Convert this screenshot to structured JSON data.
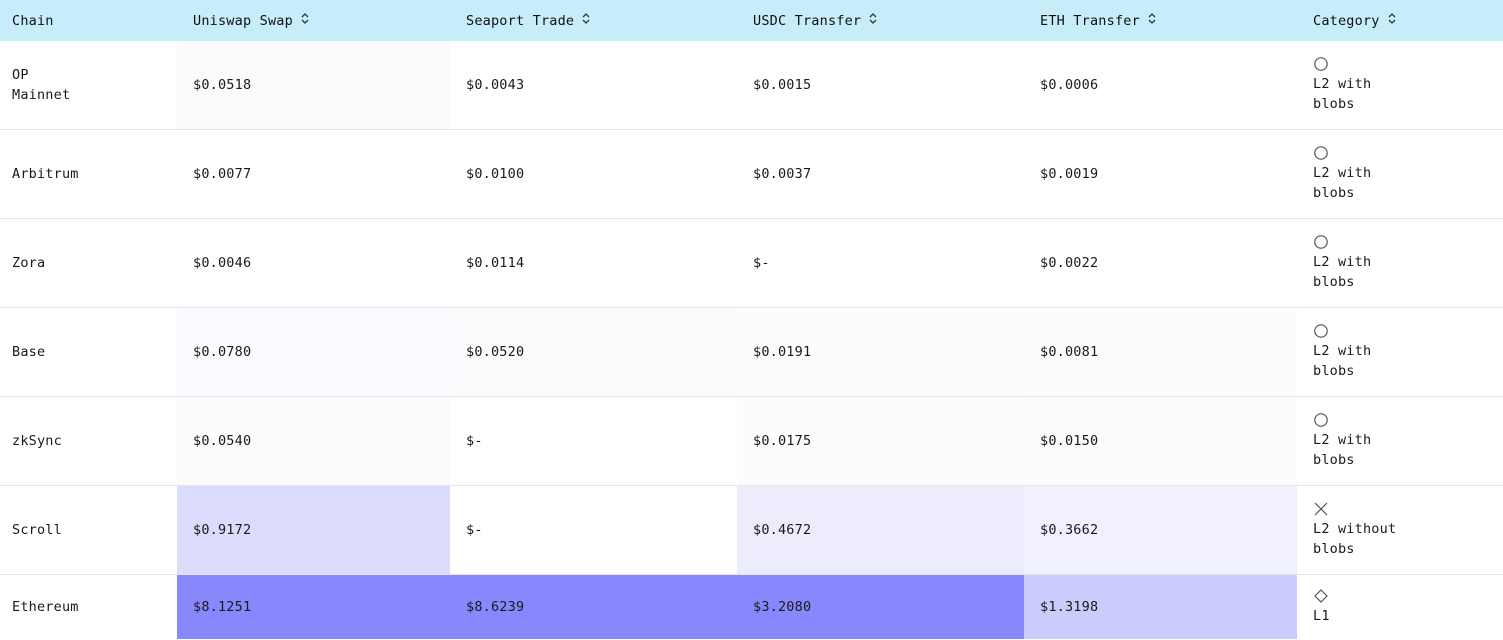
{
  "columns": [
    {
      "label": "Chain",
      "sortable": false
    },
    {
      "label": "Uniswap Swap",
      "sortable": true
    },
    {
      "label": "Seaport Trade",
      "sortable": true
    },
    {
      "label": "USDC Transfer",
      "sortable": true
    },
    {
      "label": "ETH Transfer",
      "sortable": true
    },
    {
      "label": "Category",
      "sortable": true
    }
  ],
  "rows": [
    {
      "chain": "OP Mainnet",
      "cells": [
        "$0.0518",
        "$0.0043",
        "$0.0015",
        "$0.0006"
      ],
      "bg": [
        "#fbfbfe",
        "#ffffff",
        "#ffffff",
        "#ffffff"
      ],
      "category": "L2 with blobs",
      "category_icon": "circle-icon"
    },
    {
      "chain": "Arbitrum",
      "cells": [
        "$0.0077",
        "$0.0100",
        "$0.0037",
        "$0.0019"
      ],
      "bg": [
        "#ffffff",
        "#ffffff",
        "#ffffff",
        "#ffffff"
      ],
      "category": "L2 with blobs",
      "category_icon": "circle-icon"
    },
    {
      "chain": "Zora",
      "cells": [
        "$0.0046",
        "$0.0114",
        "$-",
        "$0.0022"
      ],
      "bg": [
        "#ffffff",
        "#ffffff",
        "#ffffff",
        "#ffffff"
      ],
      "category": "L2 with blobs",
      "category_icon": "circle-icon"
    },
    {
      "chain": "Base",
      "cells": [
        "$0.0780",
        "$0.0520",
        "$0.0191",
        "$0.0081"
      ],
      "bg": [
        "#fafaff",
        "#fbfbfe",
        "#fcfcff",
        "#fcfcff"
      ],
      "category": "L2 with blobs",
      "category_icon": "circle-icon"
    },
    {
      "chain": "zkSync",
      "cells": [
        "$0.0540",
        "$-",
        "$0.0175",
        "$0.0150"
      ],
      "bg": [
        "#fbfbfe",
        "#ffffff",
        "#fcfcff",
        "#fbfbfe"
      ],
      "category": "L2 with blobs",
      "category_icon": "circle-icon"
    },
    {
      "chain": "Scroll",
      "cells": [
        "$0.9172",
        "$-",
        "$0.4672",
        "$0.3662"
      ],
      "bg": [
        "#dbdbfc",
        "#ffffff",
        "#ececfd",
        "#f0f0fe"
      ],
      "category": "L2 without blobs",
      "category_icon": "x-icon"
    },
    {
      "chain": "Ethereum",
      "cells": [
        "$8.1251",
        "$8.6239",
        "$3.2080",
        "$1.3198"
      ],
      "bg": [
        "#8888fc",
        "#8888fc",
        "#8888fc",
        "#cbcbfc"
      ],
      "category": "L1",
      "category_icon": "diamond-icon"
    }
  ]
}
